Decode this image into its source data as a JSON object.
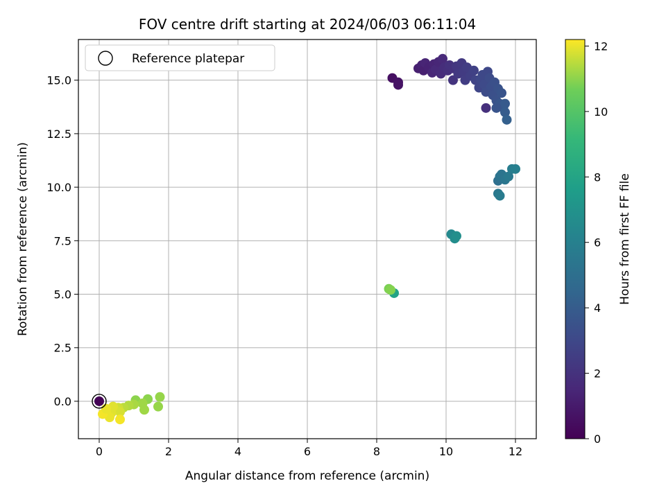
{
  "chart_data": {
    "type": "scatter",
    "title": "FOV centre drift starting at 2024/06/03 06:11:04",
    "xlabel": "Angular distance from reference (arcmin)",
    "ylabel": "Rotation from reference (arcmin)",
    "xlim": [
      -0.6,
      12.6
    ],
    "ylim": [
      -1.75,
      16.9
    ],
    "xticks": [
      0,
      2,
      4,
      6,
      8,
      10,
      12
    ],
    "xtick_labels": [
      "0",
      "2",
      "4",
      "6",
      "8",
      "10",
      "12"
    ],
    "yticks": [
      0.0,
      2.5,
      5.0,
      7.5,
      10.0,
      12.5,
      15.0
    ],
    "ytick_labels": [
      "0.0",
      "2.5",
      "5.0",
      "7.5",
      "10.0",
      "12.5",
      "15.0"
    ],
    "grid": true,
    "legend": {
      "placement": "upper-left",
      "entries": [
        "Reference platepar"
      ]
    },
    "colorbar": {
      "label": "Hours from first FF file",
      "colormap": "viridis",
      "range": [
        0,
        12.2
      ],
      "ticks": [
        0,
        2,
        4,
        6,
        8,
        10,
        12
      ],
      "tick_labels": [
        "0",
        "2",
        "4",
        "6",
        "8",
        "10",
        "12"
      ]
    },
    "reference_point": {
      "x": 0,
      "y": 0
    },
    "points": [
      {
        "x": 0.0,
        "y": 0.0,
        "h": 0.1
      },
      {
        "x": 8.45,
        "y": 15.1,
        "h": 0.6
      },
      {
        "x": 8.62,
        "y": 14.9,
        "h": 0.7
      },
      {
        "x": 8.62,
        "y": 14.78,
        "h": 0.7
      },
      {
        "x": 9.2,
        "y": 15.55,
        "h": 1.2
      },
      {
        "x": 9.3,
        "y": 15.7,
        "h": 1.3
      },
      {
        "x": 9.35,
        "y": 15.45,
        "h": 1.2
      },
      {
        "x": 9.4,
        "y": 15.8,
        "h": 1.4
      },
      {
        "x": 9.5,
        "y": 15.6,
        "h": 1.3
      },
      {
        "x": 9.6,
        "y": 15.35,
        "h": 1.5
      },
      {
        "x": 9.65,
        "y": 15.75,
        "h": 1.4
      },
      {
        "x": 9.7,
        "y": 15.5,
        "h": 1.6
      },
      {
        "x": 9.78,
        "y": 15.85,
        "h": 1.5
      },
      {
        "x": 9.85,
        "y": 15.3,
        "h": 1.7
      },
      {
        "x": 9.9,
        "y": 16.0,
        "h": 1.6
      },
      {
        "x": 9.95,
        "y": 15.6,
        "h": 1.8
      },
      {
        "x": 10.05,
        "y": 15.45,
        "h": 1.9
      },
      {
        "x": 10.1,
        "y": 15.7,
        "h": 2.0
      },
      {
        "x": 10.2,
        "y": 15.55,
        "h": 2.0
      },
      {
        "x": 10.2,
        "y": 15.0,
        "h": 2.1
      },
      {
        "x": 10.3,
        "y": 15.65,
        "h": 2.2
      },
      {
        "x": 10.35,
        "y": 15.3,
        "h": 2.3
      },
      {
        "x": 10.45,
        "y": 15.8,
        "h": 2.3
      },
      {
        "x": 10.5,
        "y": 15.4,
        "h": 2.4
      },
      {
        "x": 10.55,
        "y": 15.0,
        "h": 2.5
      },
      {
        "x": 10.6,
        "y": 15.6,
        "h": 2.5
      },
      {
        "x": 10.7,
        "y": 15.2,
        "h": 2.6
      },
      {
        "x": 10.8,
        "y": 15.45,
        "h": 2.7
      },
      {
        "x": 10.85,
        "y": 15.0,
        "h": 2.8
      },
      {
        "x": 10.95,
        "y": 14.65,
        "h": 2.9
      },
      {
        "x": 11.0,
        "y": 15.05,
        "h": 3.0
      },
      {
        "x": 11.05,
        "y": 15.25,
        "h": 3.0
      },
      {
        "x": 11.1,
        "y": 14.8,
        "h": 3.1
      },
      {
        "x": 11.15,
        "y": 14.45,
        "h": 3.2
      },
      {
        "x": 11.2,
        "y": 15.4,
        "h": 3.0
      },
      {
        "x": 11.25,
        "y": 15.1,
        "h": 3.2
      },
      {
        "x": 11.3,
        "y": 14.7,
        "h": 3.3
      },
      {
        "x": 11.35,
        "y": 14.3,
        "h": 3.4
      },
      {
        "x": 11.4,
        "y": 14.9,
        "h": 3.4
      },
      {
        "x": 11.45,
        "y": 14.05,
        "h": 3.5
      },
      {
        "x": 11.5,
        "y": 14.6,
        "h": 3.5
      },
      {
        "x": 11.55,
        "y": 13.9,
        "h": 3.7
      },
      {
        "x": 11.6,
        "y": 14.4,
        "h": 3.6
      },
      {
        "x": 11.65,
        "y": 13.7,
        "h": 3.8
      },
      {
        "x": 11.7,
        "y": 13.9,
        "h": 3.9
      },
      {
        "x": 11.7,
        "y": 13.5,
        "h": 4.0
      },
      {
        "x": 11.75,
        "y": 13.15,
        "h": 4.2
      },
      {
        "x": 11.15,
        "y": 13.7,
        "h": 1.9
      },
      {
        "x": 11.45,
        "y": 13.7,
        "h": 3.6
      },
      {
        "x": 11.5,
        "y": 10.3,
        "h": 5.0
      },
      {
        "x": 11.55,
        "y": 10.5,
        "h": 5.2
      },
      {
        "x": 11.6,
        "y": 10.6,
        "h": 5.3
      },
      {
        "x": 11.7,
        "y": 10.35,
        "h": 5.4
      },
      {
        "x": 11.8,
        "y": 10.5,
        "h": 5.6
      },
      {
        "x": 11.9,
        "y": 10.85,
        "h": 5.8
      },
      {
        "x": 12.0,
        "y": 10.85,
        "h": 5.9
      },
      {
        "x": 11.5,
        "y": 9.7,
        "h": 5.5
      },
      {
        "x": 11.55,
        "y": 9.6,
        "h": 5.7
      },
      {
        "x": 10.15,
        "y": 7.8,
        "h": 6.5
      },
      {
        "x": 10.25,
        "y": 7.6,
        "h": 6.7
      },
      {
        "x": 10.3,
        "y": 7.72,
        "h": 6.8
      },
      {
        "x": 8.5,
        "y": 5.05,
        "h": 7.9
      },
      {
        "x": 8.35,
        "y": 5.25,
        "h": 10.8
      },
      {
        "x": 8.4,
        "y": 5.2,
        "h": 10.9
      },
      {
        "x": 1.05,
        "y": 0.05,
        "h": 11.0
      },
      {
        "x": 1.4,
        "y": 0.1,
        "h": 11.0
      },
      {
        "x": 1.75,
        "y": 0.2,
        "h": 11.1
      },
      {
        "x": 1.7,
        "y": -0.25,
        "h": 11.1
      },
      {
        "x": 1.3,
        "y": -0.4,
        "h": 11.2
      },
      {
        "x": 1.25,
        "y": -0.1,
        "h": 11.2
      },
      {
        "x": 1.0,
        "y": -0.15,
        "h": 11.3
      },
      {
        "x": 0.85,
        "y": -0.2,
        "h": 11.4
      },
      {
        "x": 0.7,
        "y": -0.3,
        "h": 11.5
      },
      {
        "x": 0.55,
        "y": -0.3,
        "h": 11.7
      },
      {
        "x": 0.6,
        "y": -0.5,
        "h": 11.8
      },
      {
        "x": 0.45,
        "y": -0.4,
        "h": 11.8
      },
      {
        "x": 0.35,
        "y": -0.55,
        "h": 11.9
      },
      {
        "x": 0.3,
        "y": -0.75,
        "h": 12.0
      },
      {
        "x": 0.2,
        "y": -0.5,
        "h": 12.0
      },
      {
        "x": 0.1,
        "y": -0.6,
        "h": 12.1
      },
      {
        "x": 0.6,
        "y": -0.85,
        "h": 12.1
      },
      {
        "x": 0.4,
        "y": -0.25,
        "h": 11.9
      },
      {
        "x": 0.2,
        "y": -0.35,
        "h": 12.0
      }
    ]
  }
}
